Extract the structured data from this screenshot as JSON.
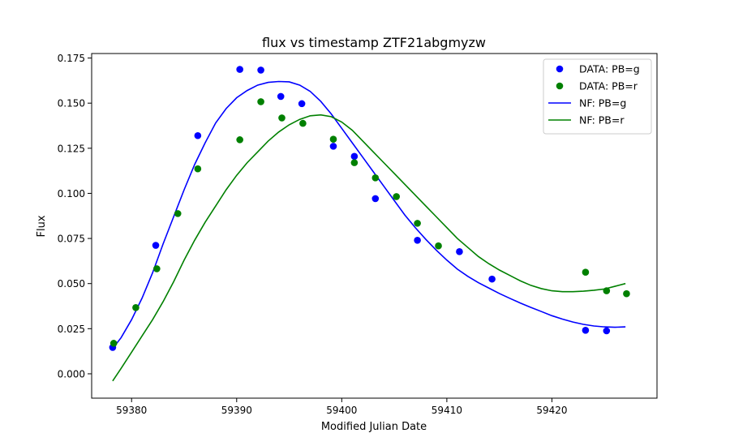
{
  "chart_data": {
    "type": "scatter",
    "title": "flux vs timestamp ZTF21abgmyzw",
    "xlabel": "Modified Julian Date",
    "ylabel": "Flux",
    "xlim": [
      59376.2,
      59430.0
    ],
    "ylim": [
      -0.0135,
      0.1775
    ],
    "x_ticks": [
      59380,
      59390,
      59400,
      59410,
      59420
    ],
    "x_tick_labels": [
      "59380",
      "59390",
      "59400",
      "59410",
      "59420"
    ],
    "y_ticks": [
      0.0,
      0.025,
      0.05,
      0.075,
      0.1,
      0.125,
      0.15,
      0.175
    ],
    "y_tick_labels": [
      "0.000",
      "0.025",
      "0.050",
      "0.075",
      "0.100",
      "0.125",
      "0.150",
      "0.175"
    ],
    "grid": false,
    "legend_position": "upper right",
    "series": [
      {
        "name": "DATA: PB=g",
        "kind": "scatter",
        "color": "#0000ff",
        "points": [
          [
            59378.2,
            0.0146
          ],
          [
            59382.3,
            0.0712
          ],
          [
            59386.3,
            0.132
          ],
          [
            59390.3,
            0.1687
          ],
          [
            59392.3,
            0.1683
          ],
          [
            59394.2,
            0.1537
          ],
          [
            59396.2,
            0.1497
          ],
          [
            59399.2,
            0.1261
          ],
          [
            59401.2,
            0.1205
          ],
          [
            59403.2,
            0.0971
          ],
          [
            59407.2,
            0.074
          ],
          [
            59411.2,
            0.0677
          ],
          [
            59414.3,
            0.0525
          ],
          [
            59423.2,
            0.0241
          ],
          [
            59425.2,
            0.0238
          ]
        ]
      },
      {
        "name": "DATA: PB=r",
        "kind": "scatter",
        "color": "#008000",
        "points": [
          [
            59378.3,
            0.0169
          ],
          [
            59380.4,
            0.0367
          ],
          [
            59382.4,
            0.0582
          ],
          [
            59384.4,
            0.0888
          ],
          [
            59386.3,
            0.1136
          ],
          [
            59390.3,
            0.1297
          ],
          [
            59392.3,
            0.1508
          ],
          [
            59394.3,
            0.1418
          ],
          [
            59396.3,
            0.1388
          ],
          [
            59399.2,
            0.13
          ],
          [
            59401.2,
            0.117
          ],
          [
            59403.2,
            0.1086
          ],
          [
            59405.2,
            0.0982
          ],
          [
            59407.2,
            0.0834
          ],
          [
            59409.2,
            0.0709
          ],
          [
            59423.2,
            0.0563
          ],
          [
            59425.2,
            0.046
          ],
          [
            59427.1,
            0.0444
          ]
        ]
      },
      {
        "name": "NF: PB=g",
        "kind": "line",
        "color": "#0000ff",
        "points": [
          [
            59378.2,
            0.014
          ],
          [
            59379.0,
            0.02
          ],
          [
            59380.0,
            0.03
          ],
          [
            59381.0,
            0.042
          ],
          [
            59382.0,
            0.056
          ],
          [
            59383.0,
            0.072
          ],
          [
            59384.0,
            0.087
          ],
          [
            59385.0,
            0.102
          ],
          [
            59386.0,
            0.116
          ],
          [
            59387.0,
            0.128
          ],
          [
            59388.0,
            0.139
          ],
          [
            59389.0,
            0.147
          ],
          [
            59390.0,
            0.153
          ],
          [
            59391.0,
            0.157
          ],
          [
            59392.0,
            0.16
          ],
          [
            59393.0,
            0.1615
          ],
          [
            59394.0,
            0.162
          ],
          [
            59395.0,
            0.1618
          ],
          [
            59396.0,
            0.16
          ],
          [
            59397.0,
            0.1565
          ],
          [
            59398.0,
            0.151
          ],
          [
            59399.0,
            0.144
          ],
          [
            59400.0,
            0.136
          ],
          [
            59401.0,
            0.128
          ],
          [
            59402.0,
            0.12
          ],
          [
            59403.0,
            0.112
          ],
          [
            59404.0,
            0.104
          ],
          [
            59405.0,
            0.096
          ],
          [
            59406.0,
            0.088
          ],
          [
            59407.0,
            0.081
          ],
          [
            59408.0,
            0.0745
          ],
          [
            59409.0,
            0.0685
          ],
          [
            59410.0,
            0.063
          ],
          [
            59411.0,
            0.058
          ],
          [
            59412.0,
            0.054
          ],
          [
            59413.0,
            0.0505
          ],
          [
            59414.0,
            0.0475
          ],
          [
            59415.0,
            0.0445
          ],
          [
            59416.0,
            0.0418
          ],
          [
            59417.0,
            0.0392
          ],
          [
            59418.0,
            0.0368
          ],
          [
            59419.0,
            0.0345
          ],
          [
            59420.0,
            0.0322
          ],
          [
            59421.0,
            0.0303
          ],
          [
            59422.0,
            0.0287
          ],
          [
            59423.0,
            0.0274
          ],
          [
            59424.0,
            0.0265
          ],
          [
            59425.0,
            0.026
          ],
          [
            59426.0,
            0.0258
          ],
          [
            59427.0,
            0.026
          ]
        ]
      },
      {
        "name": "NF: PB=r",
        "kind": "line",
        "color": "#008000",
        "points": [
          [
            59378.2,
            -0.004
          ],
          [
            59379.0,
            0.003
          ],
          [
            59380.0,
            0.012
          ],
          [
            59381.0,
            0.021
          ],
          [
            59382.0,
            0.03
          ],
          [
            59383.0,
            0.04
          ],
          [
            59384.0,
            0.051
          ],
          [
            59385.0,
            0.063
          ],
          [
            59386.0,
            0.074
          ],
          [
            59387.0,
            0.084
          ],
          [
            59388.0,
            0.093
          ],
          [
            59389.0,
            0.102
          ],
          [
            59390.0,
            0.11
          ],
          [
            59391.0,
            0.117
          ],
          [
            59392.0,
            0.123
          ],
          [
            59393.0,
            0.129
          ],
          [
            59394.0,
            0.134
          ],
          [
            59395.0,
            0.138
          ],
          [
            59396.0,
            0.141
          ],
          [
            59397.0,
            0.143
          ],
          [
            59398.0,
            0.1435
          ],
          [
            59399.0,
            0.1425
          ],
          [
            59400.0,
            0.1395
          ],
          [
            59401.0,
            0.135
          ],
          [
            59402.0,
            0.129
          ],
          [
            59403.0,
            0.123
          ],
          [
            59404.0,
            0.117
          ],
          [
            59405.0,
            0.111
          ],
          [
            59406.0,
            0.105
          ],
          [
            59407.0,
            0.099
          ],
          [
            59408.0,
            0.093
          ],
          [
            59409.0,
            0.087
          ],
          [
            59410.0,
            0.081
          ],
          [
            59411.0,
            0.075
          ],
          [
            59412.0,
            0.07
          ],
          [
            59413.0,
            0.065
          ],
          [
            59414.0,
            0.061
          ],
          [
            59415.0,
            0.0575
          ],
          [
            59416.0,
            0.0545
          ],
          [
            59417.0,
            0.0515
          ],
          [
            59418.0,
            0.049
          ],
          [
            59419.0,
            0.0472
          ],
          [
            59420.0,
            0.046
          ],
          [
            59421.0,
            0.0455
          ],
          [
            59422.0,
            0.0455
          ],
          [
            59423.0,
            0.0458
          ],
          [
            59424.0,
            0.0463
          ],
          [
            59425.0,
            0.047
          ],
          [
            59426.0,
            0.0485
          ],
          [
            59427.0,
            0.05
          ]
        ]
      }
    ]
  }
}
